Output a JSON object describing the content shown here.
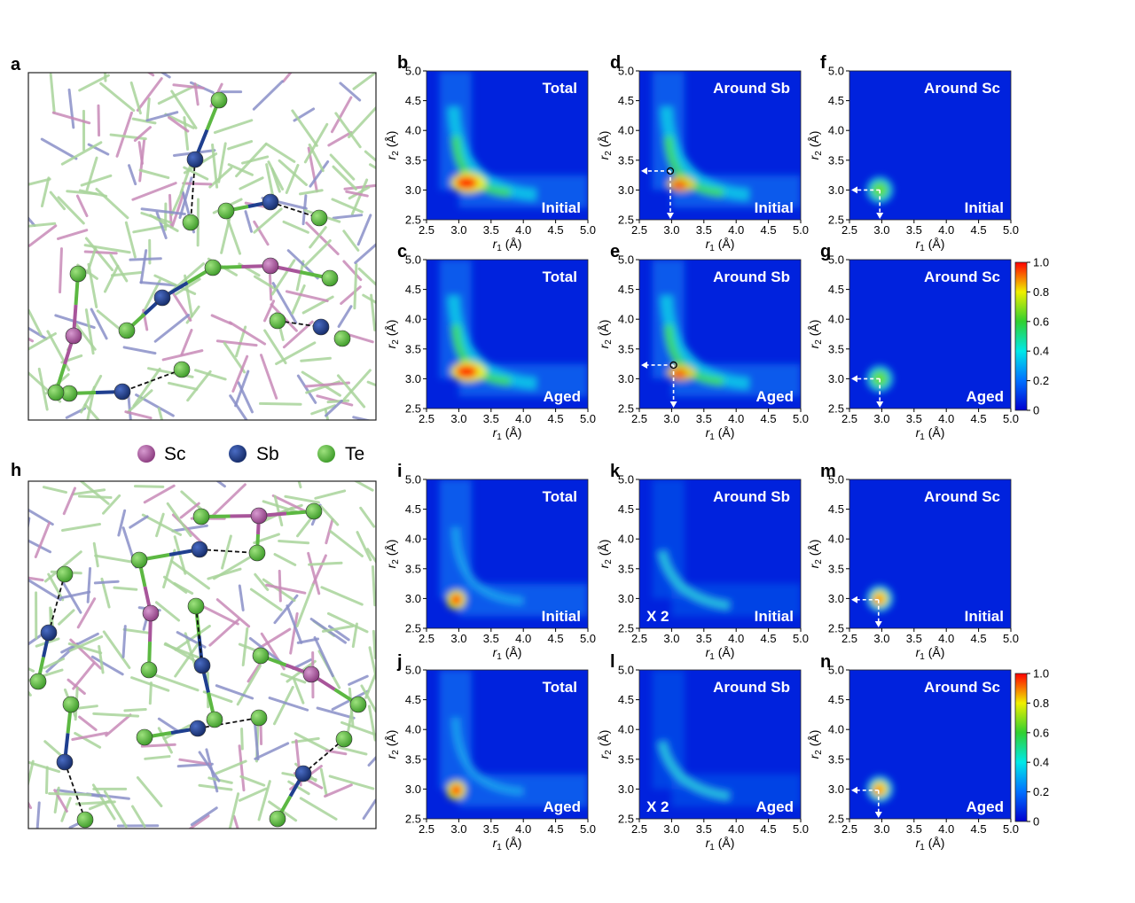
{
  "panel_letters": {
    "a": "a",
    "h": "h",
    "b": "b",
    "c": "c",
    "d": "d",
    "e": "e",
    "f": "f",
    "g": "g",
    "i": "i",
    "j": "j",
    "k": "k",
    "l": "l",
    "m": "m",
    "n": "n"
  },
  "legend": [
    {
      "label": "Sc",
      "color": "#a8559a"
    },
    {
      "label": "Sb",
      "color": "#1f3f8f"
    },
    {
      "label": "Te",
      "color": "#5cb842"
    }
  ],
  "axis": {
    "ticks": [
      "2.5",
      "3.0",
      "3.5",
      "4.0",
      "4.5",
      "5.0"
    ],
    "xlabel_main": "r",
    "xlabel_sub": "1",
    "xlabel_unit": " (Å)",
    "ylabel_main": "r",
    "ylabel_sub": "2",
    "ylabel_unit": " (Å)"
  },
  "colorbar": {
    "ticks": [
      "1.0",
      "0.8",
      "0.6",
      "0.4",
      "0.2",
      "0"
    ]
  },
  "chart_data": [
    {
      "panel": "b",
      "type": "heatmap",
      "title": "Total",
      "state": "Initial",
      "xlim": [
        2.5,
        5.0
      ],
      "ylim": [
        2.5,
        5.0
      ],
      "peak_x": 3.1,
      "peak_y": 3.15
    },
    {
      "panel": "c",
      "type": "heatmap",
      "title": "Total",
      "state": "Aged",
      "xlim": [
        2.5,
        5.0
      ],
      "ylim": [
        2.5,
        5.0
      ],
      "peak_x": 3.1,
      "peak_y": 3.1
    },
    {
      "panel": "d",
      "type": "heatmap",
      "title": "Around Sb",
      "state": "Initial",
      "xlim": [
        2.5,
        5.0
      ],
      "ylim": [
        2.5,
        5.0
      ],
      "marker": [
        2.98,
        3.32
      ]
    },
    {
      "panel": "e",
      "type": "heatmap",
      "title": "Around Sb",
      "state": "Aged",
      "xlim": [
        2.5,
        5.0
      ],
      "ylim": [
        2.5,
        5.0
      ],
      "marker": [
        3.03,
        3.23
      ]
    },
    {
      "panel": "f",
      "type": "heatmap",
      "title": "Around Sc",
      "state": "Initial",
      "xlim": [
        2.5,
        5.0
      ],
      "ylim": [
        2.5,
        5.0
      ],
      "marker": [
        2.97,
        3.0
      ]
    },
    {
      "panel": "g",
      "type": "heatmap",
      "title": "Around Sc",
      "state": "Aged",
      "xlim": [
        2.5,
        5.0
      ],
      "ylim": [
        2.5,
        5.0
      ],
      "marker": [
        2.97,
        3.0
      ]
    },
    {
      "panel": "i",
      "type": "heatmap",
      "title": "Total",
      "state": "Initial",
      "xlim": [
        2.5,
        5.0
      ],
      "ylim": [
        2.5,
        5.0
      ],
      "peak_x": 2.95,
      "peak_y": 2.98
    },
    {
      "panel": "j",
      "type": "heatmap",
      "title": "Total",
      "state": "Aged",
      "xlim": [
        2.5,
        5.0
      ],
      "ylim": [
        2.5,
        5.0
      ],
      "peak_x": 2.97,
      "peak_y": 2.99
    },
    {
      "panel": "k",
      "type": "heatmap",
      "title": "Around Sb",
      "state": "Initial",
      "scale_note": "X 2",
      "xlim": [
        2.5,
        5.0
      ],
      "ylim": [
        2.5,
        5.0
      ]
    },
    {
      "panel": "l",
      "type": "heatmap",
      "title": "Around Sb",
      "state": "Aged",
      "scale_note": "X 2",
      "xlim": [
        2.5,
        5.0
      ],
      "ylim": [
        2.5,
        5.0
      ]
    },
    {
      "panel": "m",
      "type": "heatmap",
      "title": "Around Sc",
      "state": "Initial",
      "xlim": [
        2.5,
        5.0
      ],
      "ylim": [
        2.5,
        5.0
      ],
      "marker": [
        2.95,
        2.98
      ]
    },
    {
      "panel": "n",
      "type": "heatmap",
      "title": "Around Sc",
      "state": "Aged",
      "xlim": [
        2.5,
        5.0
      ],
      "ylim": [
        2.5,
        5.0
      ],
      "marker": [
        2.95,
        2.98
      ]
    }
  ]
}
